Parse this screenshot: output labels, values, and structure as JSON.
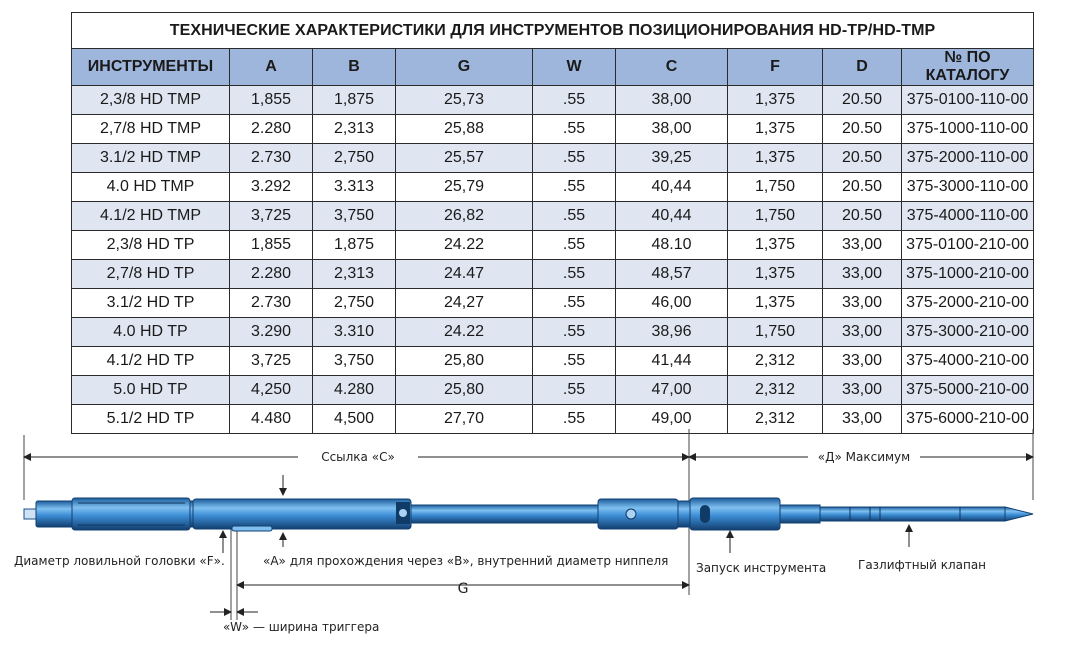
{
  "table": {
    "title": "ТЕХНИЧЕСКИЕ ХАРАКТЕРИСТИКИ ДЛЯ ИНСТРУМЕНТОВ ПОЗИЦИОНИРОВАНИЯ HD-TP/HD-TMP",
    "headers": [
      "ИНСТРУМЕНТЫ",
      "A",
      "B",
      "G",
      "W",
      "C",
      "F",
      "D",
      "№ ПО КАТАЛОГУ"
    ],
    "rows": [
      [
        "2,3/8 HD TMP",
        "1,855",
        "1,875",
        "25,73",
        ".55",
        "38,00",
        "1,375",
        "20.50",
        "375-0100-110-00"
      ],
      [
        "2,7/8 HD TMP",
        "2.280",
        "2,313",
        "25,88",
        ".55",
        "38,00",
        "1,375",
        "20.50",
        "375-1000-110-00"
      ],
      [
        "3.1/2 HD TMP",
        "2.730",
        "2,750",
        "25,57",
        ".55",
        "39,25",
        "1,375",
        "20.50",
        "375-2000-110-00"
      ],
      [
        "4.0 HD TMP",
        "3.292",
        "3.313",
        "25,79",
        ".55",
        "40,44",
        "1,750",
        "20.50",
        "375-3000-110-00"
      ],
      [
        "4.1/2 HD TMP",
        "3,725",
        "3,750",
        "26,82",
        ".55",
        "40,44",
        "1,750",
        "20.50",
        "375-4000-110-00"
      ],
      [
        "2,3/8 HD TP",
        "1,855",
        "1,875",
        "24.22",
        ".55",
        "48.10",
        "1,375",
        "33,00",
        "375-0100-210-00"
      ],
      [
        "2,7/8 HD TP",
        "2.280",
        "2,313",
        "24.47",
        ".55",
        "48,57",
        "1,375",
        "33,00",
        "375-1000-210-00"
      ],
      [
        "3.1/2 HD TP",
        "2.730",
        "2,750",
        "24,27",
        ".55",
        "46,00",
        "1,375",
        "33,00",
        "375-2000-210-00"
      ],
      [
        "4.0 HD TP",
        "3.290",
        "3.310",
        "24.22",
        ".55",
        "38,96",
        "1,750",
        "33,00",
        "375-3000-210-00"
      ],
      [
        "4.1/2 HD TP",
        "3,725",
        "3,750",
        "25,80",
        ".55",
        "41,44",
        "2,312",
        "33,00",
        "375-4000-210-00"
      ],
      [
        "5.0 HD TP",
        "4,250",
        "4.280",
        "25,80",
        ".55",
        "47,00",
        "2,312",
        "33,00",
        "375-5000-210-00"
      ],
      [
        "5.1/2 HD TP",
        "4.480",
        "4,500",
        "27,70",
        ".55",
        "49,00",
        "2,312",
        "33,00",
        "375-6000-210-00"
      ]
    ]
  },
  "diagram": {
    "label_c": "Ссылка «С»",
    "label_d": "«Д» Максимум",
    "label_f": "Диаметр ловильной головки «F».",
    "label_a": "«А» для прохождения через «В», внутренний диаметр ниппеля",
    "label_launch": "Запуск инструмента",
    "label_valve": "Газлифтный клапан",
    "label_g": "G",
    "label_w": "«W» — ширина триггера"
  },
  "colors": {
    "header_bg": "#9fb6dc",
    "row_shade": "#dfe5f1",
    "tool_blue": "#3d8ed6"
  }
}
